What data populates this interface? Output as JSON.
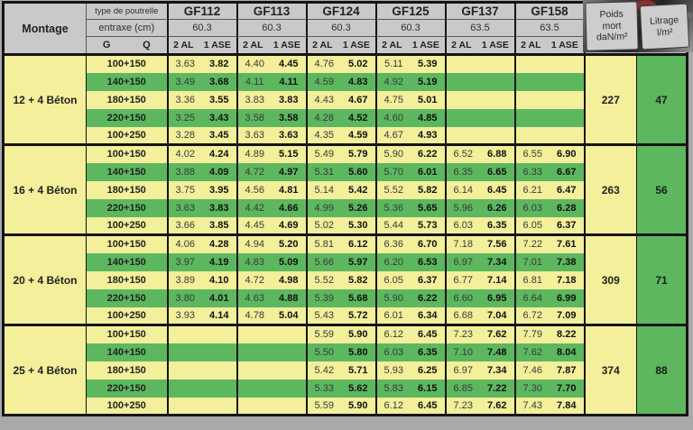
{
  "colors": {
    "stripe_yellow": "#f3ef9a",
    "stripe_green": "#5cb75f",
    "header_gray": "#c9c9c9",
    "border_black": "#141414"
  },
  "header": {
    "montage": "Montage",
    "type_de_poutrelle": "type de poutrelle",
    "entraxe": "entraxe (cm)",
    "g": "G",
    "q": "Q",
    "col_2al": "2 AL",
    "col_1ase": "1 ASE",
    "poids_lines": [
      "Poids",
      "mort",
      "daN/m²"
    ],
    "litrage_lines": [
      "Litrage",
      "l/m²"
    ],
    "beams": [
      {
        "name": "GF112",
        "entraxe": "60.3"
      },
      {
        "name": "GF113",
        "entraxe": "60.3"
      },
      {
        "name": "GF124",
        "entraxe": "60.3"
      },
      {
        "name": "GF125",
        "entraxe": "60.3"
      },
      {
        "name": "GF137",
        "entraxe": "63.5"
      },
      {
        "name": "GF158",
        "entraxe": "63.5"
      }
    ]
  },
  "blocks": [
    {
      "montage": "12 + 4 Béton",
      "poids_mort": "227",
      "litrage": "47",
      "rows": [
        {
          "load": "100+150",
          "values": [
            "3.63",
            "3.82",
            "4.40",
            "4.45",
            "4.76",
            "5.02",
            "5.11",
            "5.39",
            "",
            "",
            "",
            ""
          ]
        },
        {
          "load": "140+150",
          "values": [
            "3.49",
            "3.68",
            "4.11",
            "4.11",
            "4.59",
            "4.83",
            "4.92",
            "5.19",
            "",
            "",
            "",
            ""
          ]
        },
        {
          "load": "180+150",
          "values": [
            "3.36",
            "3.55",
            "3.83",
            "3.83",
            "4.43",
            "4.67",
            "4.75",
            "5.01",
            "",
            "",
            "",
            ""
          ]
        },
        {
          "load": "220+150",
          "values": [
            "3.25",
            "3.43",
            "3.58",
            "3.58",
            "4.28",
            "4.52",
            "4.60",
            "4.85",
            "",
            "",
            "",
            ""
          ]
        },
        {
          "load": "100+250",
          "values": [
            "3.28",
            "3.45",
            "3.63",
            "3.63",
            "4.35",
            "4.59",
            "4.67",
            "4.93",
            "",
            "",
            "",
            ""
          ]
        }
      ]
    },
    {
      "montage": "16 + 4 Béton",
      "poids_mort": "263",
      "litrage": "56",
      "rows": [
        {
          "load": "100+150",
          "values": [
            "4.02",
            "4.24",
            "4.89",
            "5.15",
            "5.49",
            "5.79",
            "5.90",
            "6.22",
            "6.52",
            "6.88",
            "6.55",
            "6.90"
          ]
        },
        {
          "load": "140+150",
          "values": [
            "3.88",
            "4.09",
            "4.72",
            "4.97",
            "5.31",
            "5.60",
            "5.70",
            "6.01",
            "6.35",
            "6.65",
            "6.33",
            "6.67"
          ]
        },
        {
          "load": "180+150",
          "values": [
            "3.75",
            "3.95",
            "4.56",
            "4.81",
            "5.14",
            "5.42",
            "5.52",
            "5.82",
            "6.14",
            "6.45",
            "6.21",
            "6.47"
          ]
        },
        {
          "load": "220+150",
          "values": [
            "3.63",
            "3.83",
            "4.42",
            "4.66",
            "4.99",
            "5.26",
            "5.36",
            "5.65",
            "5.96",
            "6.26",
            "6.03",
            "6.28"
          ]
        },
        {
          "load": "100+250",
          "values": [
            "3.66",
            "3.85",
            "4.45",
            "4.69",
            "5.02",
            "5.30",
            "5.44",
            "5.73",
            "6.03",
            "6.35",
            "6.05",
            "6.37"
          ]
        }
      ]
    },
    {
      "montage": "20 + 4 Béton",
      "poids_mort": "309",
      "litrage": "71",
      "rows": [
        {
          "load": "100+150",
          "values": [
            "4.06",
            "4.28",
            "4.94",
            "5.20",
            "5.81",
            "6.12",
            "6.36",
            "6.70",
            "7.18",
            "7.56",
            "7.22",
            "7.61"
          ]
        },
        {
          "load": "140+150",
          "values": [
            "3.97",
            "4.19",
            "4.83",
            "5.09",
            "5.66",
            "5.97",
            "6.20",
            "6.53",
            "6.97",
            "7.34",
            "7.01",
            "7.38"
          ]
        },
        {
          "load": "180+150",
          "values": [
            "3.89",
            "4.10",
            "4.72",
            "4.98",
            "5.52",
            "5.82",
            "6.05",
            "6.37",
            "6.77",
            "7.14",
            "6.81",
            "7.18"
          ]
        },
        {
          "load": "220+150",
          "values": [
            "3.80",
            "4.01",
            "4.63",
            "4.88",
            "5.39",
            "5.68",
            "5.90",
            "6.22",
            "6.60",
            "6.95",
            "6.64",
            "6.99"
          ]
        },
        {
          "load": "100+250",
          "values": [
            "3.93",
            "4.14",
            "4.78",
            "5.04",
            "5.43",
            "5.72",
            "6.01",
            "6.34",
            "6.68",
            "7.04",
            "6.72",
            "7.09"
          ]
        }
      ]
    },
    {
      "montage": "25 + 4 Béton",
      "poids_mort": "374",
      "litrage": "88",
      "rows": [
        {
          "load": "100+150",
          "values": [
            "",
            "",
            "",
            "",
            "5.59",
            "5.90",
            "6.12",
            "6.45",
            "7.23",
            "7.62",
            "7.79",
            "8.22"
          ]
        },
        {
          "load": "140+150",
          "values": [
            "",
            "",
            "",
            "",
            "5.50",
            "5.80",
            "6.03",
            "6.35",
            "7.10",
            "7.48",
            "7.62",
            "8.04"
          ]
        },
        {
          "load": "180+150",
          "values": [
            "",
            "",
            "",
            "",
            "5.42",
            "5.71",
            "5.93",
            "6.25",
            "6.97",
            "7.34",
            "7.46",
            "7.87"
          ]
        },
        {
          "load": "220+150",
          "values": [
            "",
            "",
            "",
            "",
            "5.33",
            "5.62",
            "5.83",
            "6.15",
            "6.85",
            "7.22",
            "7.30",
            "7.70"
          ]
        },
        {
          "load": "100+250",
          "values": [
            "",
            "",
            "",
            "",
            "5.59",
            "5.90",
            "6.12",
            "6.45",
            "7.23",
            "7.62",
            "7.43",
            "7.84"
          ]
        }
      ]
    }
  ]
}
